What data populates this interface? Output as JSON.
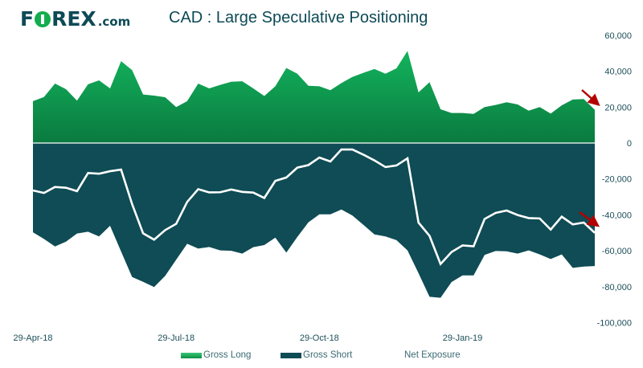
{
  "header": {
    "logo_text": "FOREX.com",
    "title": "CAD : Large Speculative Positioning"
  },
  "colors": {
    "gross_long_top": "#13b35d",
    "gross_long_bottom": "#0a7a3f",
    "gross_short": "#0f4c55",
    "net_exposure": "#ffffff",
    "arrow": "#b30000",
    "text": "#1d4f5a"
  },
  "chart_data": {
    "type": "area",
    "title": "CAD : Large Speculative Positioning",
    "xlabel": "",
    "ylabel": "",
    "ylim": [
      -100000,
      60000
    ],
    "y_ticks": [
      "60,000",
      "40,000",
      "20,000",
      "0",
      "-20,000",
      "-40,000",
      "-60,000",
      "-80,000",
      "-100,000"
    ],
    "y_tick_values": [
      60000,
      40000,
      20000,
      0,
      -20000,
      -40000,
      -60000,
      -80000,
      -100000
    ],
    "x_ticks": [
      {
        "index": 0,
        "label": "29-Apr-18"
      },
      {
        "index": 13,
        "label": "29-Jul-18"
      },
      {
        "index": 26,
        "label": "29-Oct-18"
      },
      {
        "index": 39,
        "label": "29-Jan-19"
      }
    ],
    "grid": false,
    "legend_position": "bottom",
    "series": [
      {
        "name": "Gross Long",
        "kind": "area",
        "values": [
          23300,
          25600,
          33100,
          30000,
          23600,
          32700,
          34900,
          30400,
          45600,
          40600,
          27000,
          26400,
          25500,
          20000,
          23300,
          33100,
          30400,
          32400,
          34100,
          34400,
          30400,
          26200,
          31600,
          41800,
          38600,
          31900,
          31600,
          29400,
          33400,
          36800,
          39100,
          41200,
          38600,
          41600,
          51300,
          28200,
          33900,
          18800,
          16700,
          16700,
          16200,
          20000,
          21200,
          22700,
          21500,
          18000,
          20000,
          16400,
          21000,
          24200,
          24500,
          18500
        ]
      },
      {
        "name": "Gross Short",
        "kind": "area",
        "values": [
          -49700,
          -53400,
          -57600,
          -54900,
          -50400,
          -49400,
          -52000,
          -46100,
          -60400,
          -74600,
          -77300,
          -80200,
          -74000,
          -65000,
          -56100,
          -58800,
          -57900,
          -59800,
          -60000,
          -61600,
          -58000,
          -56800,
          -52700,
          -61000,
          -52300,
          -44200,
          -39700,
          -39700,
          -37000,
          -40400,
          -45600,
          -50900,
          -52000,
          -54100,
          -59800,
          -72500,
          -85600,
          -86200,
          -77400,
          -73700,
          -73700,
          -62300,
          -60100,
          -60300,
          -61600,
          -59800,
          -62000,
          -64600,
          -62000,
          -69500,
          -68800,
          -68500
        ]
      },
      {
        "name": "Net Exposure",
        "kind": "line",
        "values": [
          -26400,
          -27800,
          -24500,
          -24900,
          -26800,
          -16700,
          -17100,
          -15700,
          -14800,
          -34000,
          -50300,
          -53800,
          -48500,
          -45000,
          -32800,
          -25700,
          -27500,
          -27400,
          -25900,
          -27200,
          -27600,
          -30600,
          -21100,
          -19200,
          -13700,
          -12300,
          -8100,
          -10300,
          -3600,
          -3600,
          -6500,
          -9700,
          -13400,
          -12500,
          -8500,
          -44300,
          -51700,
          -67400,
          -60700,
          -57000,
          -57500,
          -42300,
          -38900,
          -37600,
          -40100,
          -41800,
          -42000,
          -48200,
          -41000,
          -45300,
          -44300,
          -50000
        ]
      }
    ],
    "annotations": [
      "red-arrow-gross-long-latest-down",
      "red-arrow-net-exposure-latest-down"
    ]
  },
  "legend": {
    "items": [
      {
        "label": "Gross Long"
      },
      {
        "label": "Gross Short"
      },
      {
        "label": "Net Exposure"
      }
    ]
  }
}
